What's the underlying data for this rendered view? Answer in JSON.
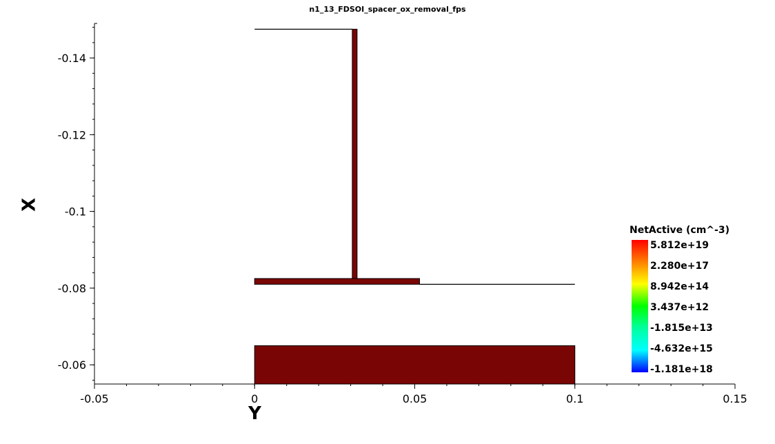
{
  "chart_data": {
    "type": "scatter",
    "title": "n1_13_FDSOI_spacer_ox_removal_fps",
    "xlabel": "Y",
    "ylabel": "X",
    "xlim": [
      -0.05,
      0.15
    ],
    "ylim": [
      -0.055,
      -0.149
    ],
    "x_ticks": [
      "-0.05",
      "0",
      "0.05",
      "0.1",
      "0.15"
    ],
    "y_ticks": [
      "-0.14",
      "-0.12",
      "-0.1",
      "-0.08",
      "-0.06"
    ],
    "grid": false,
    "field_name": "NetActive (cm^-3)",
    "fill_color": "#7a0505",
    "regions": [
      {
        "name": "bottom-slab",
        "y": [
          0,
          0.1
        ],
        "x": [
          -0.065,
          -0.055
        ]
      },
      {
        "name": "horizontal-layer",
        "y": [
          0,
          0.0515
        ],
        "x": [
          -0.0825,
          -0.081
        ]
      },
      {
        "name": "vertical-fin",
        "y": [
          0.0305,
          0.032
        ],
        "x": [
          -0.1475,
          -0.0825
        ]
      }
    ],
    "outlines": [
      {
        "name": "top-line",
        "points": [
          [
            0,
            -0.1475
          ],
          [
            0.0305,
            -0.1475
          ]
        ]
      },
      {
        "name": "thin-line",
        "points": [
          [
            0.0515,
            -0.081
          ],
          [
            0.1,
            -0.081
          ]
        ]
      }
    ],
    "legend": {
      "placement": "right",
      "title": "NetActive (cm^-3)",
      "labels": [
        "5.812e+19",
        "2.280e+17",
        "8.942e+14",
        "3.437e+12",
        "-1.815e+13",
        "-4.632e+15",
        "-1.181e+18"
      ],
      "colors": [
        "#ff0000",
        "#ff8000",
        "#ffff00",
        "#00ff00",
        "#00ffa0",
        "#00ffff",
        "#0000ff"
      ]
    }
  }
}
